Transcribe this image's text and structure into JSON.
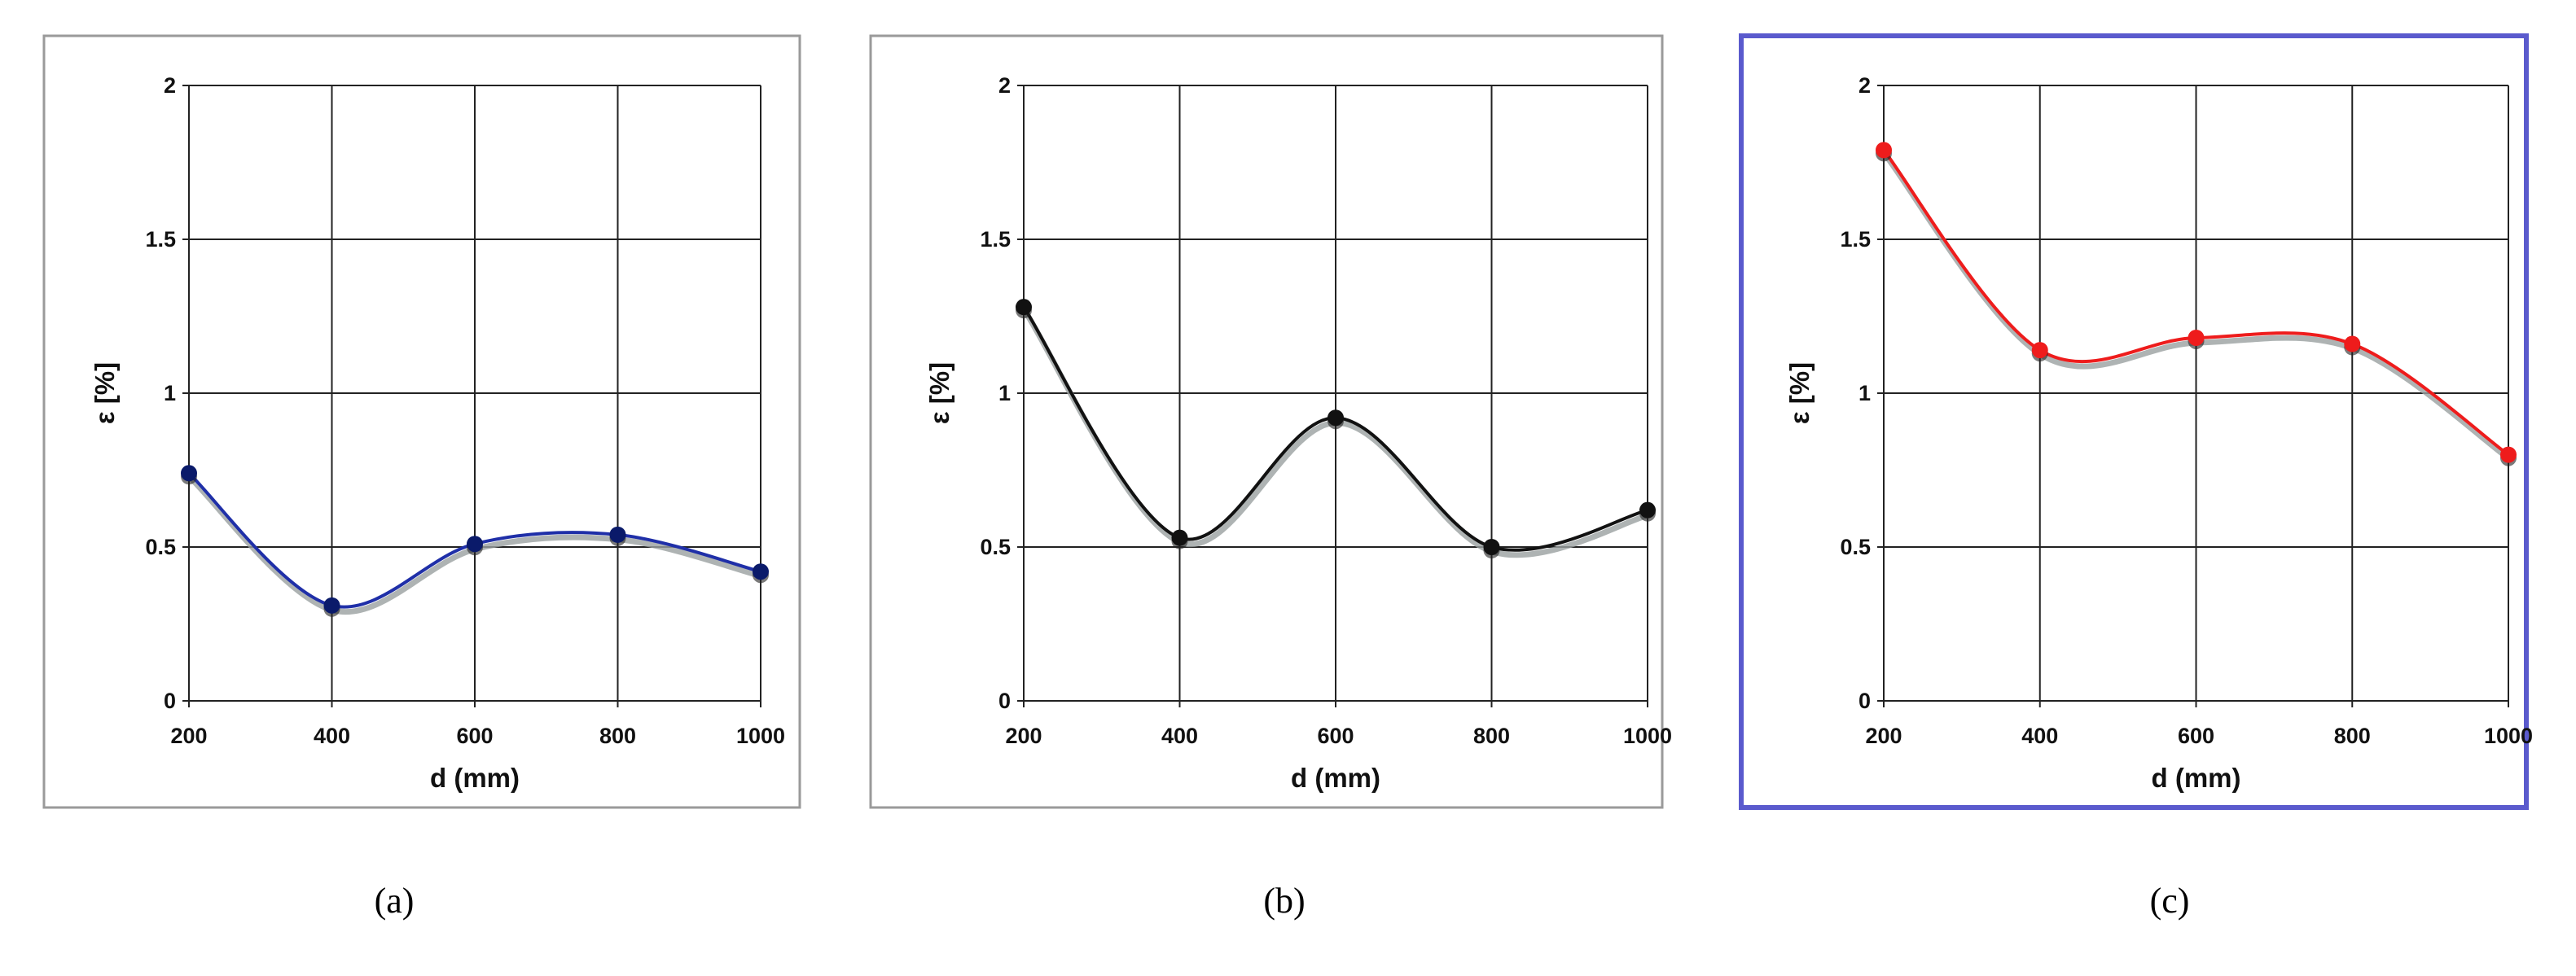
{
  "chart_data": [
    {
      "type": "line",
      "panel_label": "(a)",
      "panel_letter": "a",
      "xlabel": "d (mm)",
      "ylabel": "ε [%]",
      "x": [
        200,
        400,
        600,
        800,
        1000
      ],
      "values": [
        0.74,
        0.31,
        0.51,
        0.54,
        0.42
      ],
      "xlim": [
        200,
        1000
      ],
      "ylim": [
        0,
        2
      ],
      "xticks": [
        "200",
        "400",
        "600",
        "800",
        "1000"
      ],
      "yticks": [
        "0",
        "0.5",
        "1",
        "1.5",
        "2"
      ],
      "grid": true,
      "line_color": "#1f2fa8",
      "marker_color": "#0a1a6a",
      "frame_color": "#9a9a9a"
    },
    {
      "type": "line",
      "panel_label": "(b)",
      "panel_letter": "b",
      "xlabel": "d (mm)",
      "ylabel": "ε [%]",
      "x": [
        200,
        400,
        600,
        800,
        1000
      ],
      "values": [
        1.28,
        0.53,
        0.92,
        0.5,
        0.62
      ],
      "xlim": [
        200,
        1000
      ],
      "ylim": [
        0,
        2
      ],
      "xticks": [
        "200",
        "400",
        "600",
        "800",
        "1000"
      ],
      "yticks": [
        "0",
        "0.5",
        "1",
        "1.5",
        "2"
      ],
      "grid": true,
      "line_color": "#111111",
      "marker_color": "#111111",
      "frame_color": "#9a9a9a"
    },
    {
      "type": "line",
      "panel_label": "(c)",
      "panel_letter": "c",
      "xlabel": "d (mm)",
      "ylabel": "ε [%]",
      "x": [
        200,
        400,
        600,
        800,
        1000
      ],
      "values": [
        1.79,
        1.14,
        1.18,
        1.16,
        0.8
      ],
      "xlim": [
        200,
        1000
      ],
      "ylim": [
        0,
        2
      ],
      "xticks": [
        "200",
        "400",
        "600",
        "800",
        "1000"
      ],
      "yticks": [
        "0",
        "0.5",
        "1",
        "1.5",
        "2"
      ],
      "grid": true,
      "line_color": "#ee1c1c",
      "marker_color": "#ee1c1c",
      "frame_color": "#5a5acd"
    }
  ]
}
